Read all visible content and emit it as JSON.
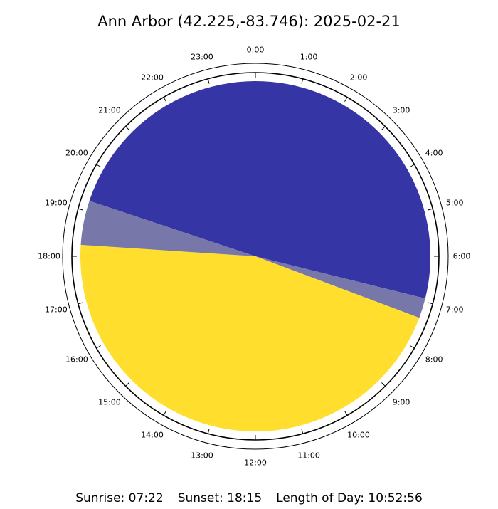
{
  "title": "Ann Arbor (42.225,-83.746): 2025-02-21",
  "summary": {
    "sunrise": "Sunrise: 07:22",
    "sunset": "Sunset: 18:15",
    "day_length": "Length of Day: 10:52:56"
  },
  "chart_data": {
    "type": "pie",
    "title": "Ann Arbor (42.225,-83.746): 2025-02-21",
    "layout": "24-hour clock dial, 0:00 at top, clockwise",
    "hour_labels": [
      "0:00",
      "1:00",
      "2:00",
      "3:00",
      "4:00",
      "5:00",
      "6:00",
      "7:00",
      "8:00",
      "9:00",
      "10:00",
      "11:00",
      "12:00",
      "13:00",
      "14:00",
      "15:00",
      "16:00",
      "17:00",
      "18:00",
      "19:00",
      "20:00",
      "21:00",
      "22:00",
      "23:00"
    ],
    "segments": [
      {
        "label": "night",
        "start_hour": 19.23,
        "end_hour": 6.93,
        "color": "#3535a5"
      },
      {
        "label": "twilight",
        "start_hour": 6.93,
        "end_hour": 7.37,
        "color": "#7777aa"
      },
      {
        "label": "day",
        "start_hour": 7.37,
        "end_hour": 18.25,
        "color": "#ffde2e"
      },
      {
        "label": "twilight",
        "start_hour": 18.25,
        "end_hour": 19.23,
        "color": "#7777aa"
      }
    ],
    "sunrise": "07:22",
    "sunset": "18:15",
    "length_of_day": "10:52:56"
  }
}
